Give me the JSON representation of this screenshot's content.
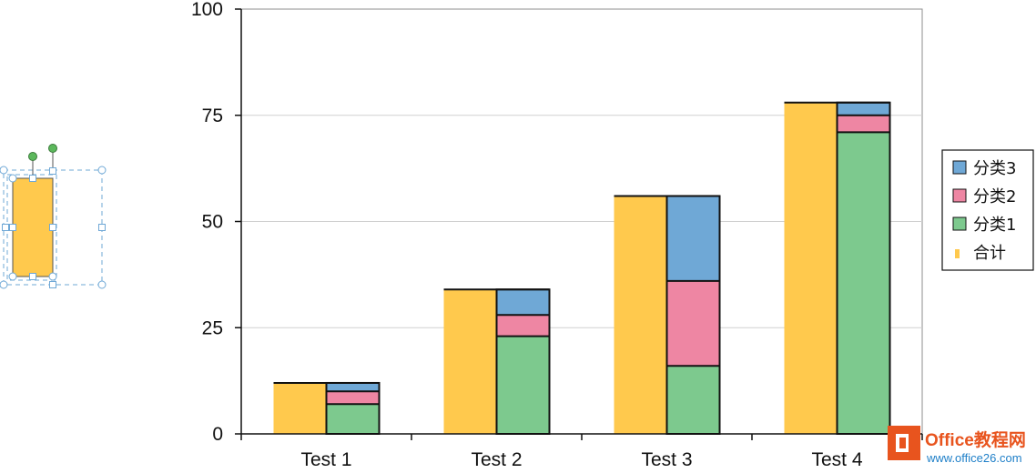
{
  "chart_data": {
    "type": "bar",
    "subtype": "stacked-with-total-overlay",
    "title": "",
    "xlabel": "",
    "ylabel": "",
    "categories": [
      "Test 1",
      "Test 2",
      "Test 3",
      "Test 4"
    ],
    "ylim": [
      0,
      100
    ],
    "yticks": [
      "0",
      "25",
      "50",
      "75",
      "100"
    ],
    "grid": true,
    "legend_position": "right",
    "total_series": {
      "name": "合计",
      "color": "#FFC94D",
      "values": [
        12,
        34,
        56,
        78
      ]
    },
    "series": [
      {
        "name": "分类1",
        "color": "#7DC98E",
        "values": [
          7,
          23,
          16,
          71
        ]
      },
      {
        "name": "分类2",
        "color": "#EE86A3",
        "values": [
          3,
          5,
          20,
          4
        ]
      },
      {
        "name": "分类3",
        "color": "#6FA8D6",
        "values": [
          2,
          6,
          20,
          3
        ]
      }
    ],
    "legend": [
      "分类3",
      "分类2",
      "分类1",
      "合计"
    ]
  },
  "watermark": {
    "brand": "Office教程网",
    "url": "www.office26.com",
    "color": "#E8541E"
  },
  "selection_shape": {
    "color": "#FFC94D",
    "handle_color": "#6FA8D6",
    "rotate_handle_color": "#5CB85C"
  }
}
